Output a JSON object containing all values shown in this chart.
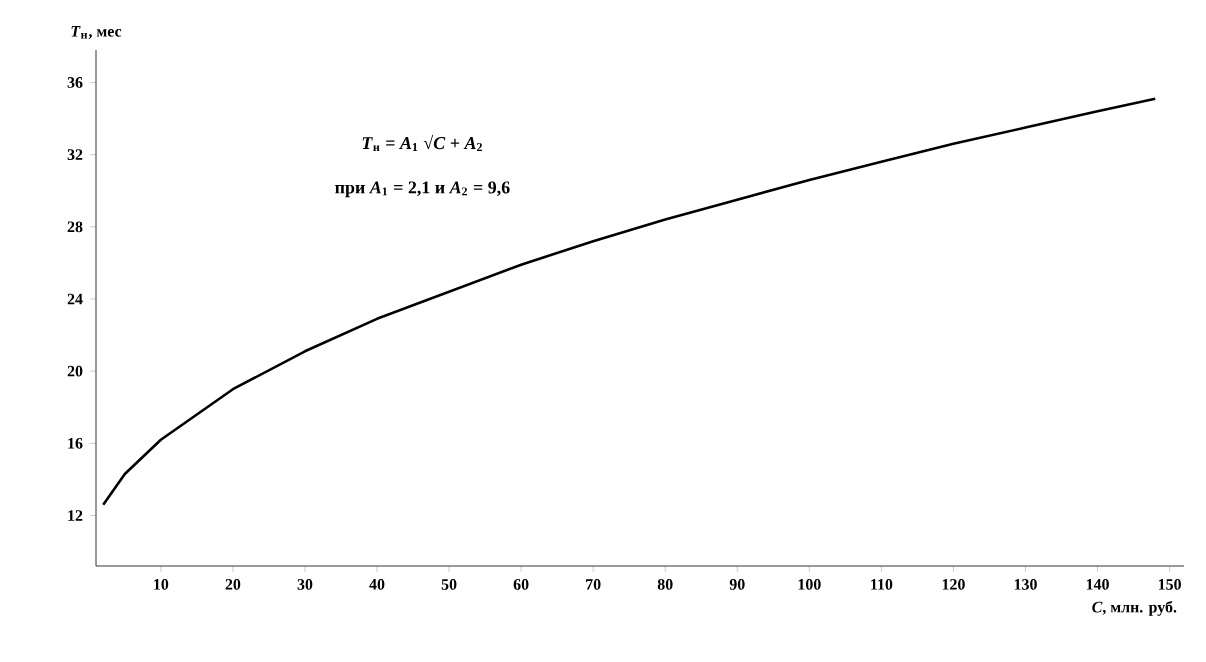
{
  "chart_data": {
    "type": "line",
    "xlabel": "*C*, млн. руб.",
    "ylabel": "*T*$_{н}$, мес",
    "annotations": [
      "*T*$_{н}$ = *A*$_{1}$ √*C* + *A*$_{2}$",
      "при *A*$_{1}$ = 2,1 и *A*$_{2}$ = 9,6"
    ],
    "x": [
      2,
      5,
      10,
      20,
      30,
      40,
      50,
      60,
      70,
      80,
      90,
      100,
      110,
      120,
      130,
      140,
      148
    ],
    "values": [
      12.6,
      14.3,
      16.2,
      19.0,
      21.1,
      22.9,
      24.4,
      25.9,
      27.2,
      28.4,
      29.5,
      30.6,
      31.6,
      32.6,
      33.5,
      34.4,
      35.1
    ],
    "color": "#000000",
    "line_style": "solid",
    "xlim": [
      1,
      152
    ],
    "ylim": [
      9.2,
      37.8
    ],
    "xticks": [
      10,
      20,
      30,
      40,
      50,
      60,
      70,
      80,
      90,
      100,
      110,
      120,
      130,
      140,
      150
    ],
    "yticks": [
      12,
      16,
      20,
      24,
      28,
      32,
      36
    ]
  }
}
